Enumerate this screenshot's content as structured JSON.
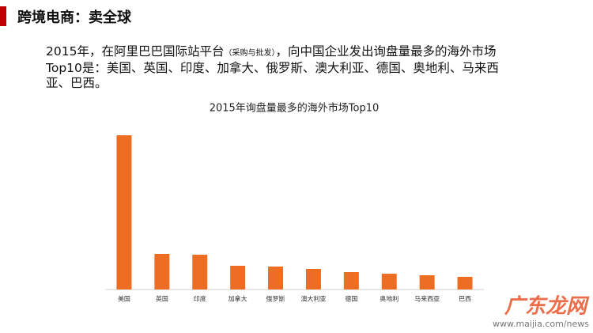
{
  "header": {
    "title": "跨境电商：卖全球"
  },
  "paragraph": {
    "before": "2015年，在阿里巴巴国际站平台",
    "note": "（采购与批发）",
    "after": "，向中国企业发出询盘量最多的海外市场Top10是：美国、英国、印度、加拿大、俄罗斯、澳大利亚、德国、奥地利、马来西亚、巴西。"
  },
  "chart_data": {
    "type": "bar",
    "title": "2015年询盘量最多的海外市场Top10",
    "categories": [
      "美国",
      "英国",
      "印度",
      "加拿大",
      "俄罗斯",
      "澳大利亚",
      "德国",
      "奥地利",
      "马来西亚",
      "巴西"
    ],
    "values": [
      195,
      45,
      44,
      30,
      29,
      26,
      22,
      20,
      18,
      16
    ],
    "color": "#ed6d22"
  },
  "watermark": {
    "brand": "广东龙网",
    "url": "www.maijia.com/news"
  }
}
